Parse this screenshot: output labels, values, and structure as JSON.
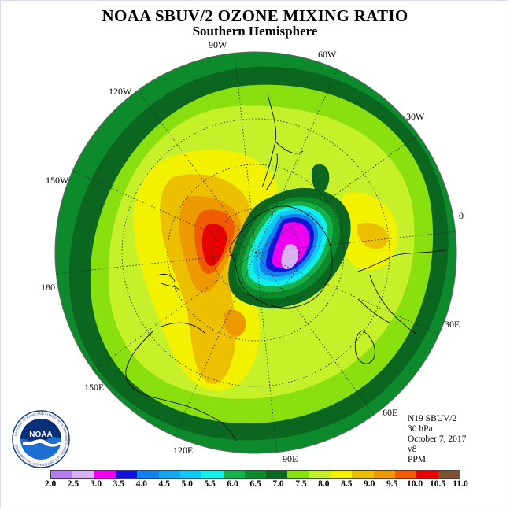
{
  "title": "NOAA SBUV/2 OZONE MIXING RATIO",
  "subtitle": "Southern Hemisphere",
  "lon_labels": [
    "90W",
    "60W",
    "30W",
    "0",
    "30E",
    "60E",
    "90E",
    "120E",
    "150E",
    "180",
    "150W",
    "120W"
  ],
  "info": {
    "satellite": "N19 SBUV/2",
    "level": "30 hPa",
    "date": "October 7, 2017",
    "version": "v8",
    "units": "PPM"
  },
  "logo": {
    "text": "NOAA",
    "ring_text": "NATIONAL OCEANIC AND ATMOSPHERIC ADMINISTRATION · U.S. DEPARTMENT OF COMMERCE"
  },
  "colorbar": {
    "ticks": [
      "2.0",
      "2.5",
      "3.0",
      "3.5",
      "4.0",
      "4.5",
      "5.0",
      "5.5",
      "6.0",
      "6.5",
      "7.0",
      "7.5",
      "8.0",
      "8.5",
      "9.0",
      "9.5",
      "10.0",
      "10.5",
      "11.0"
    ],
    "colors": [
      "#b57ef0",
      "#d8b1f3",
      "#f000f0",
      "#1414d8",
      "#1480f0",
      "#14a8f4",
      "#10c8f4",
      "#10f0e8",
      "#16b14a",
      "#0c8a2c",
      "#0b6620",
      "#8adf0e",
      "#c6f02a",
      "#f2f200",
      "#ecc000",
      "#ed9a00",
      "#f05a00",
      "#e80000",
      "#7c5030"
    ]
  }
}
